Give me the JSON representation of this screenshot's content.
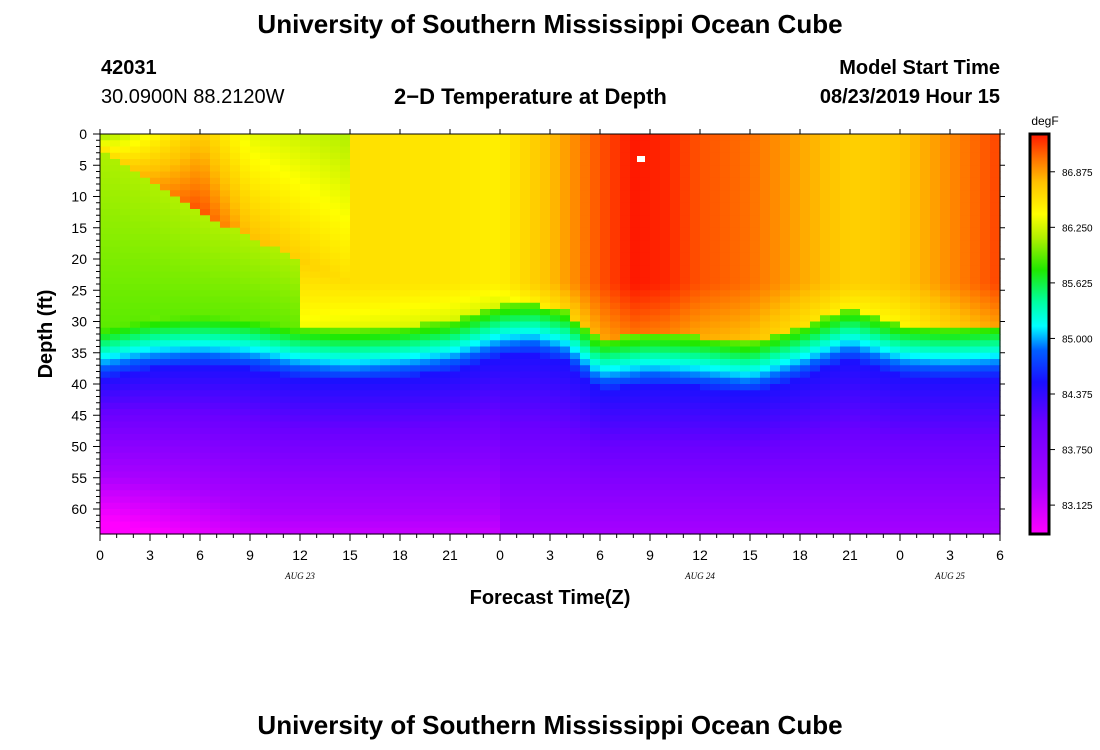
{
  "header": {
    "title": "University of Southern Mississippi Ocean Cube",
    "station_id": "42031",
    "coords": "30.0900N 88.2120W",
    "plot_title": "2−D Temperature at Depth",
    "model_start_label": "Model Start Time",
    "model_start_value": "08/23/2019 Hour 15"
  },
  "footer": {
    "title": "University of Southern Mississippi Ocean Cube"
  },
  "chart_data": {
    "type": "heatmap",
    "title": "2−D Temperature at Depth",
    "xlabel": "Forecast Time(Z)",
    "ylabel": "Depth (ft)",
    "x_tick_labels": [
      "0",
      "3",
      "6",
      "9",
      "12",
      "15",
      "18",
      "21",
      "0",
      "3",
      "6",
      "9",
      "12",
      "15",
      "18",
      "21",
      "0",
      "3",
      "6"
    ],
    "x_tick_hours": [
      0,
      3,
      6,
      9,
      12,
      15,
      18,
      21,
      24,
      27,
      30,
      33,
      36,
      39,
      42,
      45,
      48,
      51,
      54
    ],
    "date_labels": [
      {
        "text": "AUG 23",
        "hour": 12
      },
      {
        "text": "AUG 24",
        "hour": 36
      },
      {
        "text": "AUG 25",
        "hour": 51
      }
    ],
    "xlim": [
      0,
      54
    ],
    "y_tick_labels": [
      "0",
      "5",
      "10",
      "15",
      "20",
      "25",
      "30",
      "35",
      "40",
      "45",
      "50",
      "55",
      "60"
    ],
    "y_ticks": [
      0,
      5,
      10,
      15,
      20,
      25,
      30,
      35,
      40,
      45,
      50,
      55,
      60
    ],
    "ylim": [
      0,
      64
    ],
    "y_inverted": true,
    "colorbar": {
      "unit": "degF",
      "min": 82.8,
      "max": 87.3,
      "tick_labels": [
        "86.875",
        "86.250",
        "85.625",
        "85.000",
        "84.375",
        "83.750",
        "83.125"
      ],
      "ticks": [
        86.875,
        86.25,
        85.625,
        85.0,
        84.375,
        83.75,
        83.125
      ]
    },
    "grid": false
  }
}
